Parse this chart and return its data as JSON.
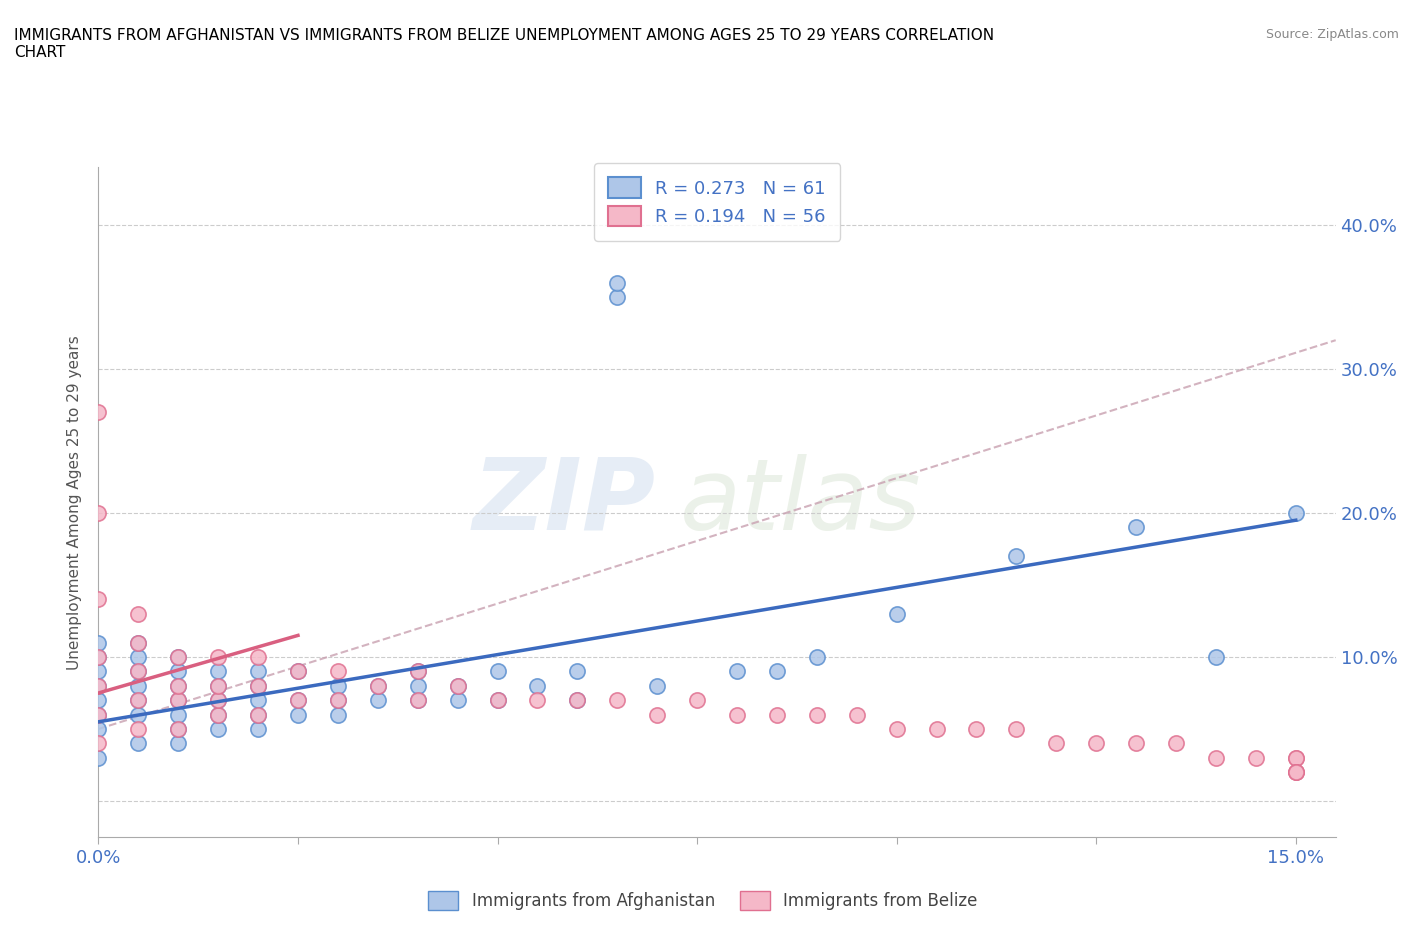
{
  "title": "IMMIGRANTS FROM AFGHANISTAN VS IMMIGRANTS FROM BELIZE UNEMPLOYMENT AMONG AGES 25 TO 29 YEARS CORRELATION\nCHART",
  "source": "Source: ZipAtlas.com",
  "ylabel": "Unemployment Among Ages 25 to 29 years",
  "xlim": [
    0.0,
    0.155
  ],
  "ylim": [
    -0.025,
    0.44
  ],
  "x_ticks": [
    0.0,
    0.025,
    0.05,
    0.075,
    0.1,
    0.125,
    0.15
  ],
  "y_ticks": [
    0.0,
    0.1,
    0.2,
    0.3,
    0.4
  ],
  "afghanistan_color": "#aec6e8",
  "afghanistan_edge_color": "#5b8fcf",
  "belize_color": "#f5b8c8",
  "belize_edge_color": "#e07090",
  "afghanistan_line_color": "#3b6abf",
  "belize_line_color": "#d95f80",
  "dashed_line_color": "#c8a0b0",
  "R_afghanistan": 0.273,
  "N_afghanistan": 61,
  "R_belize": 0.194,
  "N_belize": 56,
  "watermark_zip": "ZIP",
  "watermark_atlas": "atlas",
  "afghanistan_scatter_x": [
    0.0,
    0.0,
    0.0,
    0.0,
    0.0,
    0.0,
    0.0,
    0.0,
    0.005,
    0.005,
    0.005,
    0.005,
    0.005,
    0.005,
    0.005,
    0.01,
    0.01,
    0.01,
    0.01,
    0.01,
    0.01,
    0.01,
    0.015,
    0.015,
    0.015,
    0.015,
    0.015,
    0.02,
    0.02,
    0.02,
    0.02,
    0.02,
    0.025,
    0.025,
    0.025,
    0.03,
    0.03,
    0.03,
    0.035,
    0.035,
    0.04,
    0.04,
    0.04,
    0.045,
    0.045,
    0.05,
    0.05,
    0.055,
    0.06,
    0.06,
    0.065,
    0.065,
    0.07,
    0.08,
    0.085,
    0.09,
    0.1,
    0.115,
    0.13,
    0.14,
    0.15
  ],
  "afghanistan_scatter_y": [
    0.03,
    0.05,
    0.06,
    0.07,
    0.08,
    0.09,
    0.1,
    0.11,
    0.04,
    0.06,
    0.07,
    0.08,
    0.09,
    0.1,
    0.11,
    0.04,
    0.05,
    0.06,
    0.07,
    0.08,
    0.09,
    0.1,
    0.05,
    0.06,
    0.07,
    0.08,
    0.09,
    0.05,
    0.06,
    0.07,
    0.08,
    0.09,
    0.06,
    0.07,
    0.09,
    0.06,
    0.07,
    0.08,
    0.07,
    0.08,
    0.07,
    0.08,
    0.09,
    0.07,
    0.08,
    0.07,
    0.09,
    0.08,
    0.07,
    0.09,
    0.35,
    0.36,
    0.08,
    0.09,
    0.09,
    0.1,
    0.13,
    0.17,
    0.19,
    0.1,
    0.2
  ],
  "belize_scatter_x": [
    0.0,
    0.0,
    0.0,
    0.0,
    0.0,
    0.0,
    0.0,
    0.005,
    0.005,
    0.005,
    0.005,
    0.005,
    0.01,
    0.01,
    0.01,
    0.01,
    0.015,
    0.015,
    0.015,
    0.015,
    0.02,
    0.02,
    0.02,
    0.025,
    0.025,
    0.03,
    0.03,
    0.035,
    0.04,
    0.04,
    0.045,
    0.05,
    0.055,
    0.06,
    0.065,
    0.07,
    0.075,
    0.08,
    0.085,
    0.09,
    0.095,
    0.1,
    0.105,
    0.11,
    0.115,
    0.12,
    0.125,
    0.13,
    0.135,
    0.14,
    0.145,
    0.15,
    0.15,
    0.15,
    0.15,
    0.15
  ],
  "belize_scatter_y": [
    0.04,
    0.06,
    0.08,
    0.1,
    0.14,
    0.2,
    0.27,
    0.05,
    0.07,
    0.09,
    0.11,
    0.13,
    0.05,
    0.07,
    0.08,
    0.1,
    0.06,
    0.07,
    0.08,
    0.1,
    0.06,
    0.08,
    0.1,
    0.07,
    0.09,
    0.07,
    0.09,
    0.08,
    0.07,
    0.09,
    0.08,
    0.07,
    0.07,
    0.07,
    0.07,
    0.06,
    0.07,
    0.06,
    0.06,
    0.06,
    0.06,
    0.05,
    0.05,
    0.05,
    0.05,
    0.04,
    0.04,
    0.04,
    0.04,
    0.03,
    0.03,
    0.03,
    0.03,
    0.02,
    0.02,
    0.02
  ],
  "af_trend_x": [
    0.0,
    0.15
  ],
  "af_trend_y": [
    0.055,
    0.195
  ],
  "bz_trend_x": [
    0.0,
    0.025
  ],
  "bz_trend_y": [
    0.075,
    0.115
  ],
  "dashed_trend_x": [
    0.0,
    0.155
  ],
  "dashed_trend_y": [
    0.05,
    0.32
  ]
}
